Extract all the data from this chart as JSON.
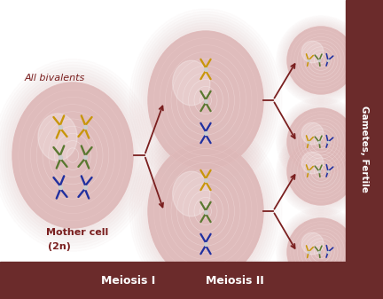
{
  "bg_color": "#ffffff",
  "bottom_bar_color": "#6b2b2b",
  "right_bar_color": "#6b2b2b",
  "cell_fill": "#ddb8b8",
  "arrow_color": "#7a1f1f",
  "text_color_dark": "#7a1f1f",
  "chrom_gold": "#c8960a",
  "chrom_green": "#5a7830",
  "chrom_blue": "#2030a0",
  "title_bottom": "Meiosis I",
  "title_bottom2": "Meiosis II",
  "label_right": "Gametes, Fertile",
  "label_mother": "Mother cell",
  "label_mother2": "(2n)",
  "label_bivalents": "All bivalents"
}
